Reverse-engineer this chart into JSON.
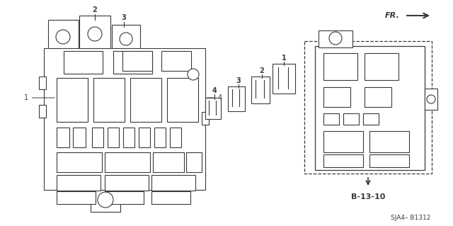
{
  "bg_color": "#ffffff",
  "page_ref": "SJA4– B1312",
  "b1310_label": "B-13-10",
  "fr_label": "FR.",
  "line_color": "#3a3a3a",
  "lw": 0.8,
  "fig_w": 6.4,
  "fig_h": 3.19,
  "dpi": 100
}
